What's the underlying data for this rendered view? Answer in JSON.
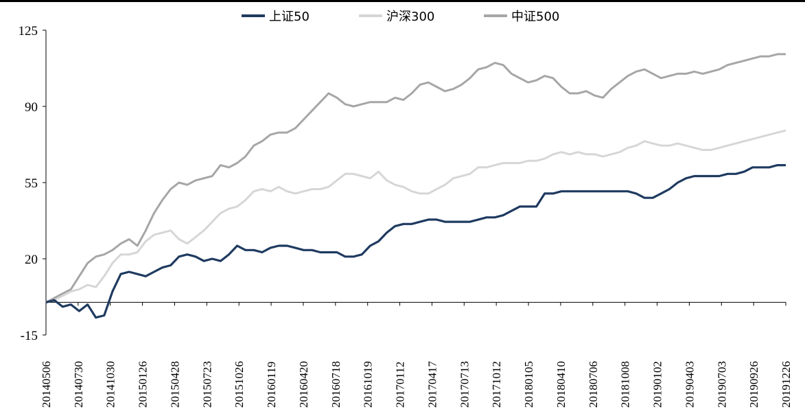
{
  "chart_data": {
    "type": "line",
    "title": "",
    "xlabel": "",
    "ylabel": "",
    "ylim": [
      -15,
      125
    ],
    "yticks": [
      -15,
      20,
      55,
      90,
      125
    ],
    "x_tick_labels": [
      "20140506",
      "20140730",
      "20141030",
      "20150126",
      "20150428",
      "20150723",
      "20151026",
      "20160119",
      "20160420",
      "20160718",
      "20161019",
      "20170112",
      "20170417",
      "20170713",
      "20171012",
      "20180105",
      "20180410",
      "20180706",
      "20181008",
      "20190102",
      "20190403",
      "20190703",
      "20190926",
      "20191226"
    ],
    "zero_line": 0,
    "series": [
      {
        "name": "上证50",
        "color": "#1f3a60",
        "values": [
          0,
          1,
          -2,
          -1,
          -4,
          -1,
          -7,
          -6,
          5,
          13,
          14,
          13,
          12,
          14,
          16,
          17,
          21,
          22,
          21,
          19,
          20,
          19,
          22,
          26,
          24,
          24,
          23,
          25,
          26,
          26,
          25,
          24,
          24,
          23,
          23,
          23,
          21,
          21,
          22,
          26,
          28,
          32,
          35,
          36,
          36,
          37,
          38,
          38,
          37,
          37,
          37,
          37,
          38,
          39,
          39,
          40,
          42,
          44,
          44,
          44,
          50,
          50,
          51,
          51,
          51,
          51,
          51,
          51,
          51,
          51,
          51,
          50,
          48,
          48,
          50,
          52,
          55,
          57,
          58,
          58,
          58,
          58,
          59,
          59,
          60,
          62,
          62,
          62,
          63,
          63
        ]
      },
      {
        "name": "沪深300",
        "color": "#d6d6d6",
        "values": [
          0,
          1,
          3,
          5,
          6,
          8,
          7,
          12,
          18,
          22,
          22,
          23,
          28,
          31,
          32,
          33,
          29,
          27,
          30,
          33,
          37,
          41,
          43,
          44,
          47,
          51,
          52,
          51,
          53,
          51,
          50,
          51,
          52,
          52,
          53,
          56,
          59,
          59,
          58,
          57,
          60,
          56,
          54,
          53,
          51,
          50,
          50,
          52,
          54,
          57,
          58,
          59,
          62,
          62,
          63,
          64,
          64,
          64,
          65,
          65,
          66,
          68,
          69,
          68,
          69,
          68,
          68,
          67,
          68,
          69,
          71,
          72,
          74,
          73,
          72,
          72,
          73,
          72,
          71,
          70,
          70,
          71,
          72,
          73,
          74,
          75,
          76,
          77,
          78,
          79
        ]
      },
      {
        "name": "中证500",
        "color": "#a6a6a6",
        "values": [
          0,
          2,
          4,
          6,
          12,
          18,
          21,
          22,
          24,
          27,
          29,
          26,
          33,
          41,
          47,
          52,
          55,
          54,
          56,
          57,
          58,
          63,
          62,
          64,
          67,
          72,
          74,
          77,
          78,
          78,
          80,
          84,
          88,
          92,
          96,
          94,
          91,
          90,
          91,
          92,
          92,
          92,
          94,
          93,
          96,
          100,
          101,
          99,
          97,
          98,
          100,
          103,
          107,
          108,
          110,
          109,
          105,
          103,
          101,
          102,
          104,
          103,
          99,
          96,
          96,
          97,
          95,
          94,
          98,
          101,
          104,
          106,
          107,
          105,
          103,
          104,
          105,
          105,
          106,
          105,
          106,
          107,
          109,
          110,
          111,
          112,
          113,
          113,
          114,
          114
        ]
      }
    ]
  }
}
